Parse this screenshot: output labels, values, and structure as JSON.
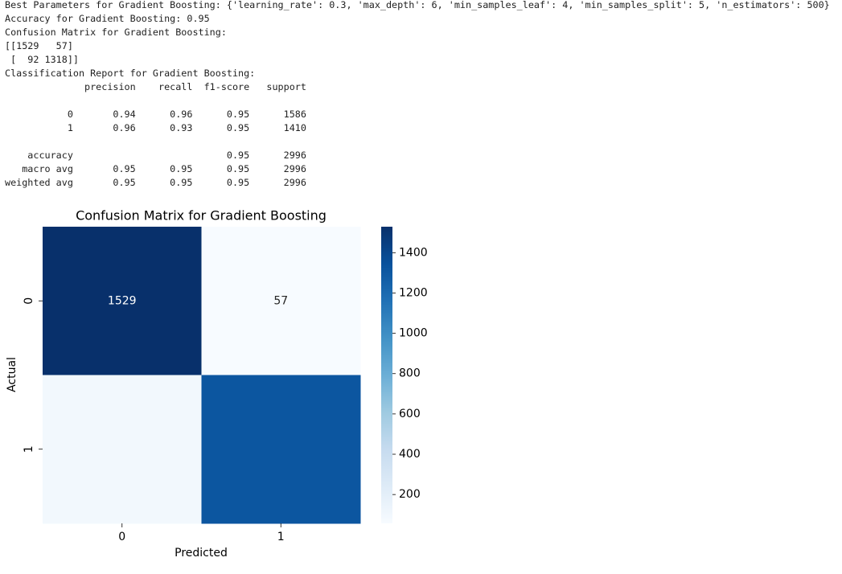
{
  "output_lines": [
    "Best Parameters for Gradient Boosting: {'learning_rate': 0.3, 'max_depth': 6, 'min_samples_leaf': 4, 'min_samples_split': 5, 'n_estimators': 500}",
    "Accuracy for Gradient Boosting: 0.95",
    "Confusion Matrix for Gradient Boosting:",
    "[[1529   57]",
    " [  92 1318]]",
    "Classification Report for Gradient Boosting:"
  ],
  "report": [
    [
      "              precision    recall  f1-score   support"
    ],
    [
      "           0       0.94      0.96      0.95      1586",
      "           1       0.96      0.93      0.95      1410"
    ],
    [
      "    accuracy                           0.95      2996",
      "   macro avg       0.95      0.95      0.95      2996",
      "weighted avg       0.95      0.95      0.95      2996"
    ]
  ],
  "chart_data": {
    "type": "heatmap",
    "title": "Confusion Matrix for Gradient Boosting",
    "x_label": "Predicted",
    "y_label": "Actual",
    "x_categories": [
      "0",
      "1"
    ],
    "y_categories": [
      "0",
      "1"
    ],
    "values": [
      [
        1529,
        57
      ],
      [
        92,
        1318
      ]
    ],
    "value_labels": [
      [
        "1529",
        "57"
      ],
      [
        null,
        null
      ]
    ],
    "colormap": "Blues",
    "zlim": [
      57,
      1529
    ],
    "zticks": [
      200,
      400,
      600,
      800,
      1000,
      1200,
      1400
    ]
  }
}
